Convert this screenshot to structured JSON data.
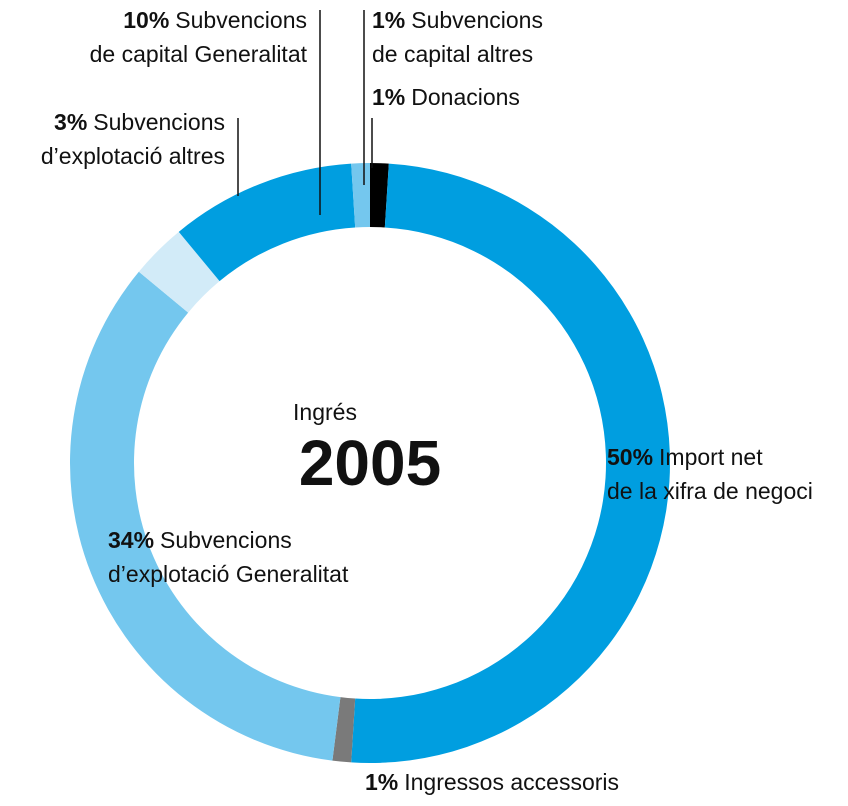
{
  "chart_data": {
    "type": "donut",
    "annotations": [
      "Ingrés",
      "2005"
    ],
    "categories": [
      [
        "Donacions"
      ],
      [
        "Import net",
        "de la xifra de negoci"
      ],
      [
        "Ingressos accessoris"
      ],
      [
        "Subvencions",
        "d’explotació Generalitat"
      ],
      [
        "Subvencions",
        "d’explotació altres"
      ],
      [
        "Subvencions",
        "de capital Generalitat"
      ],
      [
        "Subvencions",
        "de capital altres"
      ]
    ],
    "values": [
      1,
      50,
      1,
      34,
      3,
      10,
      1
    ],
    "value_labels": [
      "1%",
      "50%",
      "1%",
      "34%",
      "3%",
      "10%",
      "1%"
    ],
    "colors": [
      "#000000",
      "#009ee0",
      "#7a7a7a",
      "#74c7ee",
      "#d2ebf8",
      "#009ee0",
      "#74c7ee"
    ]
  }
}
